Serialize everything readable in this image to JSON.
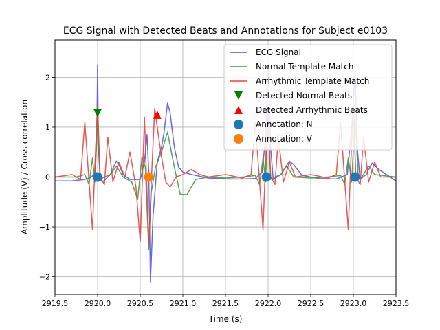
{
  "chart_data": {
    "type": "line",
    "title": "ECG Signal with Detected Beats and Annotations for Subject e0103",
    "xlabel": "Time (s)",
    "ylabel": "Amplitude (V) / Cross-correlation",
    "xlim": [
      2919.5,
      2923.5
    ],
    "ylim": [
      -2.35,
      2.75
    ],
    "xticks": [
      2919.5,
      2920.0,
      2920.5,
      2921.0,
      2921.5,
      2922.0,
      2922.5,
      2923.0,
      2923.5
    ],
    "xtick_labels": [
      "2919.5",
      "2920.0",
      "2920.5",
      "2921.0",
      "2921.5",
      "2922.0",
      "2922.5",
      "2923.0",
      "2923.5"
    ],
    "yticks": [
      -2,
      -1,
      0,
      1,
      2
    ],
    "ytick_labels": [
      "−2",
      "−1",
      "0",
      "1",
      "2"
    ],
    "grid": true,
    "legend_position": "upper-right",
    "colors": {
      "ecg": "#5555ee",
      "normal": "#3a9e3a",
      "arrhythmic": "#e84444",
      "detected_normal": "#008000",
      "detected_arrhythmic": "#ff0000",
      "annotation_n": "#1f77b4",
      "annotation_v": "#ff7f0e",
      "grid": "#b0b0b0"
    },
    "series": [
      {
        "name": "ECG Signal",
        "type": "line",
        "color": "#5555ee",
        "x": [
          2919.5,
          2919.7,
          2919.85,
          2919.93,
          2919.97,
          2919.99,
          2920.0,
          2920.01,
          2920.03,
          2920.06,
          2920.15,
          2920.22,
          2920.25,
          2920.3,
          2920.38,
          2920.45,
          2920.5,
          2920.55,
          2920.58,
          2920.6,
          2920.62,
          2920.65,
          2920.7,
          2920.75,
          2920.78,
          2920.82,
          2920.85,
          2920.9,
          2920.95,
          2921.0,
          2921.1,
          2921.3,
          2921.5,
          2921.7,
          2921.85,
          2921.93,
          2921.97,
          2922.0,
          2922.03,
          2922.06,
          2922.15,
          2922.25,
          2922.3,
          2922.4,
          2922.6,
          2922.8,
          2922.93,
          2922.99,
          2923.02,
          2923.05,
          2923.08,
          2923.15,
          2923.22,
          2923.3,
          2923.5
        ],
        "y": [
          -0.08,
          -0.08,
          -0.05,
          0.0,
          0.1,
          0.8,
          2.25,
          0.6,
          -0.05,
          -0.1,
          0.05,
          0.32,
          0.25,
          0.05,
          -0.05,
          -0.05,
          -0.05,
          0.3,
          0.85,
          0.1,
          -2.1,
          -0.8,
          0.3,
          0.6,
          0.9,
          1.48,
          1.3,
          0.6,
          0.2,
          0.1,
          0.05,
          -0.02,
          -0.04,
          -0.04,
          -0.03,
          0.1,
          0.8,
          2.25,
          0.6,
          -0.05,
          0.05,
          0.32,
          0.25,
          0.03,
          -0.03,
          -0.04,
          0.05,
          1.2,
          2.1,
          0.5,
          -0.05,
          0.05,
          0.28,
          0.15,
          -0.08
        ]
      },
      {
        "name": "Normal Template Match",
        "type": "line",
        "color": "#3a9e3a",
        "x": [
          2919.5,
          2919.75,
          2919.85,
          2919.9,
          2919.94,
          2919.97,
          2920.0,
          2920.03,
          2920.08,
          2920.15,
          2920.22,
          2920.3,
          2920.4,
          2920.47,
          2920.52,
          2920.56,
          2920.6,
          2920.63,
          2920.68,
          2920.75,
          2920.82,
          2920.9,
          2920.97,
          2921.05,
          2921.15,
          2921.3,
          2921.5,
          2921.7,
          2921.85,
          2921.9,
          2921.94,
          2921.97,
          2922.0,
          2922.03,
          2922.08,
          2922.15,
          2922.22,
          2922.3,
          2922.5,
          2922.7,
          2922.85,
          2922.9,
          2922.94,
          2922.98,
          2923.02,
          2923.06,
          2923.1,
          2923.18,
          2923.25,
          2923.5
        ],
        "y": [
          0.0,
          0.0,
          0.05,
          -0.15,
          0.38,
          -0.1,
          1.2,
          -0.05,
          0.0,
          0.05,
          0.22,
          0.0,
          -0.1,
          -0.45,
          0.4,
          0.2,
          -1.45,
          -0.3,
          0.2,
          0.5,
          0.9,
          0.2,
          -0.35,
          -0.35,
          -0.05,
          0.0,
          -0.02,
          0.0,
          0.03,
          -0.15,
          0.38,
          -0.1,
          1.2,
          -0.05,
          0.0,
          0.05,
          0.22,
          0.0,
          -0.02,
          0.0,
          0.03,
          -0.15,
          0.38,
          -0.1,
          1.2,
          -0.05,
          0.0,
          0.22,
          0.05,
          0.0
        ]
      },
      {
        "name": "Arrhythmic Template Match",
        "type": "line",
        "color": "#e84444",
        "x": [
          2919.5,
          2919.7,
          2919.8,
          2919.85,
          2919.9,
          2919.94,
          2919.97,
          2920.0,
          2920.03,
          2920.08,
          2920.12,
          2920.18,
          2920.25,
          2920.32,
          2920.38,
          2920.45,
          2920.5,
          2920.55,
          2920.6,
          2920.63,
          2920.67,
          2920.7,
          2920.75,
          2920.8,
          2920.85,
          2920.92,
          2921.0,
          2921.1,
          2921.2,
          2921.3,
          2921.5,
          2921.7,
          2921.8,
          2921.85,
          2921.9,
          2921.94,
          2921.97,
          2922.0,
          2922.03,
          2922.08,
          2922.12,
          2922.18,
          2922.25,
          2922.32,
          2922.5,
          2922.7,
          2922.8,
          2922.85,
          2922.9,
          2922.94,
          2922.97,
          2923.0,
          2923.03,
          2923.08,
          2923.12,
          2923.18,
          2923.25,
          2923.32,
          2923.5
        ],
        "y": [
          0.0,
          0.05,
          -0.05,
          1.1,
          -0.1,
          -1.05,
          0.3,
          1.45,
          0.0,
          -0.15,
          0.8,
          -0.1,
          0.3,
          0.0,
          0.5,
          -0.2,
          -1.3,
          1.2,
          -1.35,
          -0.1,
          1.38,
          1.0,
          0.4,
          -0.1,
          -0.2,
          0.0,
          0.05,
          0.15,
          0.05,
          0.0,
          0.05,
          -0.02,
          0.05,
          1.1,
          -0.1,
          -1.05,
          0.3,
          1.45,
          0.0,
          -0.15,
          0.8,
          -0.1,
          0.3,
          0.0,
          0.05,
          -0.02,
          0.05,
          1.1,
          -0.1,
          -1.05,
          0.3,
          1.45,
          0.0,
          -0.15,
          0.8,
          -0.1,
          0.3,
          0.0,
          0.0
        ]
      }
    ],
    "markers": [
      {
        "name": "Detected Normal Beats",
        "shape": "triangle-down",
        "color": "#008000",
        "x": [
          2920.0
        ],
        "y": [
          1.28
        ]
      },
      {
        "name": "Detected Arrhythmic Beats",
        "shape": "triangle-up",
        "color": "#ff0000",
        "x": [
          2920.7
        ],
        "y": [
          1.25
        ]
      },
      {
        "name": "Annotation: N",
        "shape": "circle",
        "color": "#1f77b4",
        "x": [
          2920.0,
          2921.98,
          2923.02
        ],
        "y": [
          0.0,
          0.0,
          0.0
        ]
      },
      {
        "name": "Annotation: V",
        "shape": "circle",
        "color": "#ff7f0e",
        "x": [
          2920.6
        ],
        "y": [
          0.0
        ]
      }
    ],
    "legend": [
      {
        "label": "ECG Signal",
        "kind": "line",
        "color": "#5555ee"
      },
      {
        "label": "Normal Template Match",
        "kind": "line",
        "color": "#3a9e3a"
      },
      {
        "label": "Arrhythmic Template Match",
        "kind": "line",
        "color": "#e84444"
      },
      {
        "label": "Detected Normal Beats",
        "kind": "triangle-down",
        "color": "#008000"
      },
      {
        "label": "Detected Arrhythmic Beats",
        "kind": "triangle-up",
        "color": "#ff0000"
      },
      {
        "label": "Annotation: N",
        "kind": "circle",
        "color": "#1f77b4"
      },
      {
        "label": "Annotation: V",
        "kind": "circle",
        "color": "#ff7f0e"
      }
    ]
  }
}
